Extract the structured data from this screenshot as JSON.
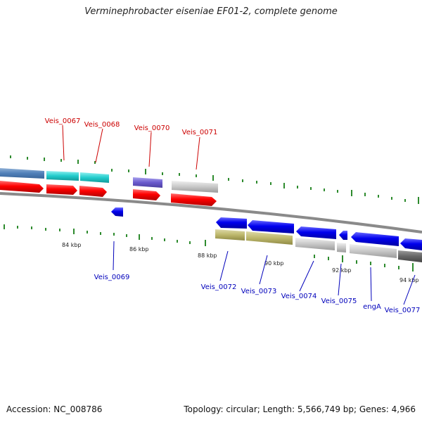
{
  "title": "Verminephrobacter eiseniae EF01-2, complete genome",
  "footer": {
    "accession": "Accession: NC_008786",
    "summary": "Topology: circular; Length: 5,566,749 bp; Genes: 4,966"
  },
  "colors": {
    "forward_label": "#cc0000",
    "reverse_label": "#0000bb",
    "backbone": "#8a8a8a",
    "tick": "#2e8b2e"
  },
  "scale_labels": [
    "84 kbp",
    "86 kbp",
    "88 kbp",
    "90 kbp",
    "92 kbp",
    "94 kbp"
  ],
  "gene_labels": [
    {
      "name": "Veis_0067",
      "strand": "+"
    },
    {
      "name": "Veis_0068",
      "strand": "+"
    },
    {
      "name": "Veis_0070",
      "strand": "+"
    },
    {
      "name": "Veis_0071",
      "strand": "+"
    },
    {
      "name": "Veis_0069",
      "strand": "-"
    },
    {
      "name": "Veis_0072",
      "strand": "-"
    },
    {
      "name": "Veis_0073",
      "strand": "-"
    },
    {
      "name": "Veis_0074",
      "strand": "-"
    },
    {
      "name": "Veis_0075",
      "strand": "-"
    },
    {
      "name": "engA",
      "strand": "-"
    },
    {
      "name": "Veis_0077",
      "strand": "-"
    }
  ]
}
